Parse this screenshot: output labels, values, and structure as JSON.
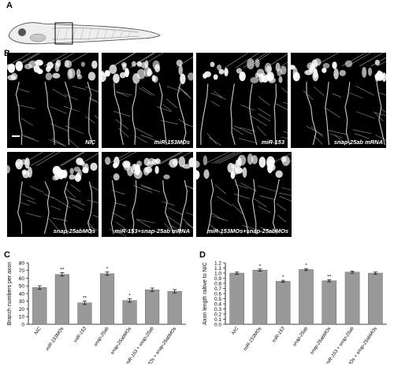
{
  "figure": {
    "panel_a_label": "A",
    "panel_b_label": "B",
    "panel_c_label": "C",
    "panel_d_label": "D"
  },
  "micrographs": [
    {
      "caption": "NIC"
    },
    {
      "caption": "miR-153MOs"
    },
    {
      "caption": "miR-153"
    },
    {
      "caption": "snap-25ab mRNA"
    },
    {
      "caption": "snap-25abMOs"
    },
    {
      "caption": "miR-153+snap-25ab mRNA"
    },
    {
      "caption": "miR-153MOs+snap-25abMOs"
    }
  ],
  "chart_data": [
    {
      "type": "bar",
      "ylabel": "Branch numbers per axon",
      "ylim": [
        0,
        80
      ],
      "yticks": [
        0,
        10,
        20,
        30,
        40,
        50,
        60,
        70,
        80
      ],
      "categories": [
        "NIC",
        "miR-153MOs",
        "miR-153",
        "snap-25ab",
        "snap-25abMOs",
        "miR-153 + snap-25ab",
        "miR-153MOs + snap-25abMOs"
      ],
      "values": [
        48,
        65,
        28,
        66,
        31,
        45,
        43
      ],
      "significance": [
        "",
        "**",
        "**",
        "*",
        "*",
        "",
        ""
      ],
      "bar_color": "#999999"
    },
    {
      "type": "bar",
      "ylabel": "Axon length raltive to NIC",
      "ylim": [
        0,
        1.2
      ],
      "yticks": [
        0,
        0.1,
        0.2,
        0.3,
        0.4,
        0.5,
        0.6,
        0.7,
        0.8,
        0.9,
        1.0,
        1.1,
        1.2
      ],
      "categories": [
        "NIC",
        "miR-153MOs",
        "miR-153",
        "snap-25ab",
        "snap-25abMOs",
        "miR-153 + snap-25ab",
        "miR-153MOs + snap-25abMOs"
      ],
      "values": [
        1.0,
        1.06,
        0.84,
        1.07,
        0.85,
        1.02,
        1.0
      ],
      "significance": [
        "",
        "*",
        "*",
        "*",
        "**",
        "",
        ""
      ],
      "bar_color": "#999999"
    }
  ]
}
